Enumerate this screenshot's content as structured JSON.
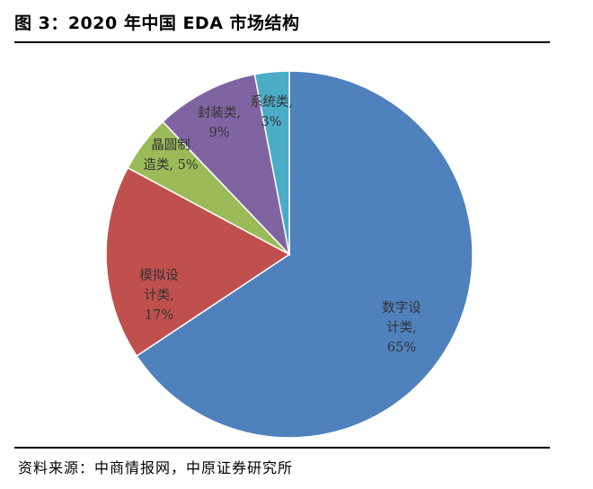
{
  "header": {
    "title": "图 3：2020 年中国 EDA 市场结构"
  },
  "footer": {
    "source": "资料来源：中商情报网，中原证券研究所"
  },
  "chart_data": {
    "type": "pie",
    "title": "2020 年中国 EDA 市场结构",
    "categories": [
      "数字设计类",
      "模拟设计类",
      "晶圆制造类",
      "封装类",
      "系统类"
    ],
    "values": [
      65,
      17,
      5,
      9,
      3
    ],
    "unit": "%",
    "start_angle_deg": 0,
    "direction": "clockwise",
    "colors": [
      "#4f81bd",
      "#c0504d",
      "#9bbb59",
      "#8064a2",
      "#4bacc6"
    ],
    "labels": [
      [
        "数字设",
        "计类,",
        "65%"
      ],
      [
        "模拟设",
        "计类,",
        "17%"
      ],
      [
        "晶圆制",
        "造类, 5%"
      ],
      [
        "封装类,",
        "9%"
      ],
      [
        "系统类,",
        "3%"
      ]
    ]
  }
}
